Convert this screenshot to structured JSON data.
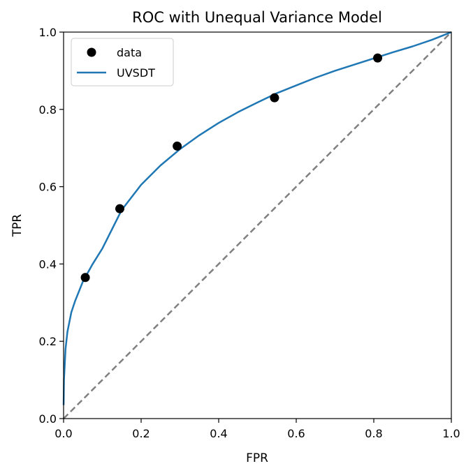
{
  "chart_data": {
    "type": "scatter",
    "title": "ROC with Unequal Variance Model",
    "xlabel": "FPR",
    "ylabel": "TPR",
    "xlim": [
      0.0,
      1.0
    ],
    "ylim": [
      0.0,
      1.0
    ],
    "xticks": [
      "0.0",
      "0.2",
      "0.4",
      "0.6",
      "0.8",
      "1.0"
    ],
    "yticks": [
      "0.0",
      "0.2",
      "0.4",
      "0.6",
      "0.8",
      "1.0"
    ],
    "grid": false,
    "legend": {
      "placement": "upper-left",
      "entries": [
        {
          "label": "data",
          "marker": "circle"
        },
        {
          "label": "UVSDT",
          "marker": "line"
        }
      ]
    },
    "series": [
      {
        "name": "data",
        "kind": "scatter",
        "color": "#000000",
        "points": [
          {
            "x": 0.056,
            "y": 0.365
          },
          {
            "x": 0.145,
            "y": 0.543
          },
          {
            "x": 0.293,
            "y": 0.705
          },
          {
            "x": 0.544,
            "y": 0.83
          },
          {
            "x": 0.81,
            "y": 0.933
          }
        ]
      },
      {
        "name": "UVSDT",
        "kind": "line",
        "color": "#1f77b4",
        "points": [
          {
            "x": 0.0001,
            "y": 0.035
          },
          {
            "x": 0.001,
            "y": 0.1
          },
          {
            "x": 0.005,
            "y": 0.18
          },
          {
            "x": 0.01,
            "y": 0.225
          },
          {
            "x": 0.02,
            "y": 0.275
          },
          {
            "x": 0.03,
            "y": 0.305
          },
          {
            "x": 0.05,
            "y": 0.355
          },
          {
            "x": 0.075,
            "y": 0.4
          },
          {
            "x": 0.1,
            "y": 0.44
          },
          {
            "x": 0.15,
            "y": 0.54
          },
          {
            "x": 0.2,
            "y": 0.605
          },
          {
            "x": 0.25,
            "y": 0.655
          },
          {
            "x": 0.3,
            "y": 0.697
          },
          {
            "x": 0.35,
            "y": 0.733
          },
          {
            "x": 0.4,
            "y": 0.765
          },
          {
            "x": 0.45,
            "y": 0.793
          },
          {
            "x": 0.5,
            "y": 0.818
          },
          {
            "x": 0.55,
            "y": 0.842
          },
          {
            "x": 0.6,
            "y": 0.862
          },
          {
            "x": 0.65,
            "y": 0.882
          },
          {
            "x": 0.7,
            "y": 0.9
          },
          {
            "x": 0.75,
            "y": 0.916
          },
          {
            "x": 0.8,
            "y": 0.932
          },
          {
            "x": 0.85,
            "y": 0.948
          },
          {
            "x": 0.9,
            "y": 0.963
          },
          {
            "x": 0.95,
            "y": 0.98
          },
          {
            "x": 1.0,
            "y": 1.0
          }
        ]
      },
      {
        "name": "chance",
        "kind": "reference-line",
        "color": "#808080",
        "style": "dashed",
        "points": [
          {
            "x": 0.0,
            "y": 0.0
          },
          {
            "x": 1.0,
            "y": 1.0
          }
        ]
      }
    ]
  }
}
